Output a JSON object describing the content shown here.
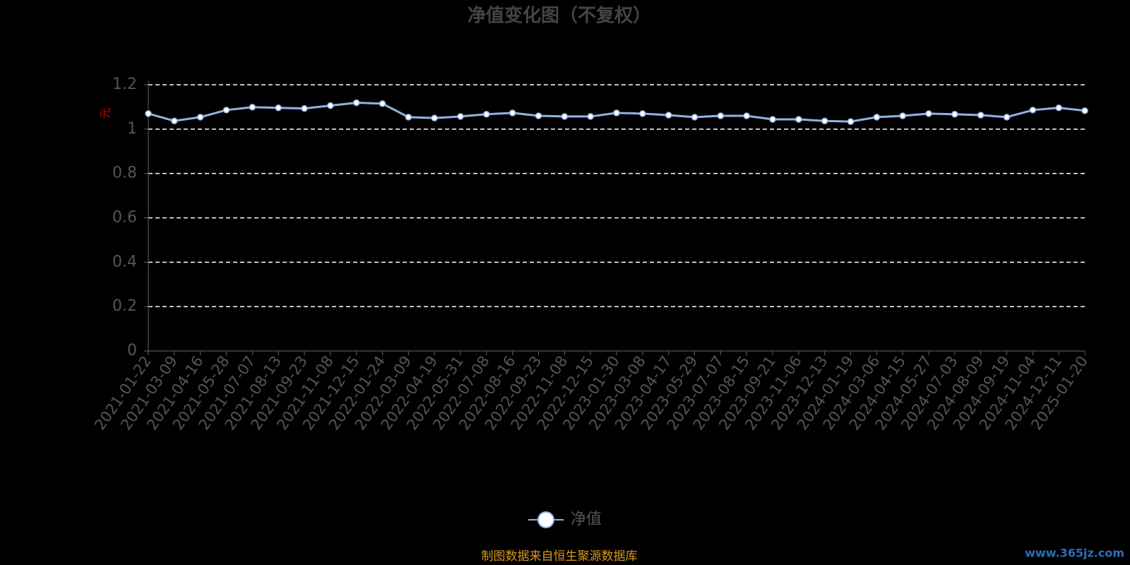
{
  "chart_data": {
    "type": "line",
    "title": "净值变化图（不复权）",
    "y_label": "元",
    "categories": [
      "2021-01-22",
      "2021-03-09",
      "2021-04-16",
      "2021-05-28",
      "2021-07-07",
      "2021-08-13",
      "2021-09-23",
      "2021-11-08",
      "2021-12-15",
      "2022-01-24",
      "2022-03-09",
      "2022-04-19",
      "2022-05-31",
      "2022-07-08",
      "2022-08-16",
      "2022-09-23",
      "2022-11-08",
      "2022-12-15",
      "2023-01-30",
      "2023-03-08",
      "2023-04-17",
      "2023-05-29",
      "2023-07-07",
      "2023-08-15",
      "2023-09-21",
      "2023-11-06",
      "2023-12-13",
      "2024-01-19",
      "2024-03-06",
      "2024-04-15",
      "2024-05-27",
      "2024-07-03",
      "2024-08-09",
      "2024-09-19",
      "2024-11-04",
      "2024-12-11",
      "2025-01-20"
    ],
    "series": [
      {
        "name": "净值",
        "color": "#8fb4e0",
        "values": [
          1.07,
          1.037,
          1.054,
          1.086,
          1.099,
          1.096,
          1.093,
          1.106,
          1.119,
          1.115,
          1.054,
          1.05,
          1.057,
          1.067,
          1.073,
          1.06,
          1.057,
          1.057,
          1.073,
          1.07,
          1.063,
          1.054,
          1.06,
          1.06,
          1.044,
          1.044,
          1.037,
          1.034,
          1.054,
          1.06,
          1.07,
          1.067,
          1.063,
          1.054,
          1.086,
          1.096,
          1.083
        ]
      }
    ],
    "ylim": [
      0,
      1.2
    ],
    "yticks": [
      0,
      0.2,
      0.4,
      0.6,
      0.8,
      1,
      1.2
    ],
    "grid": true,
    "source": "制图数据来自恒生聚源数据库",
    "watermark": "www.365jz.com"
  }
}
